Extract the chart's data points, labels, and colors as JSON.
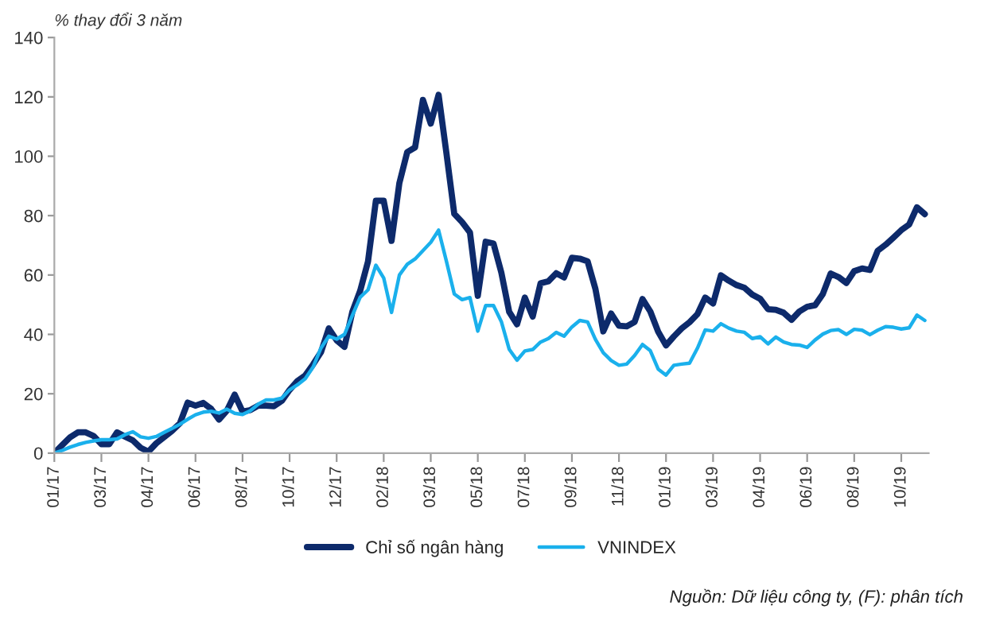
{
  "chart_data": {
    "type": "line",
    "ylabel": "% thay đổi 3 năm",
    "annotations": [
      "Nguồn: Dữ liệu công ty, (F): phân tích"
    ],
    "ylim": [
      0,
      140
    ],
    "yticks": [
      0,
      20,
      40,
      60,
      80,
      100,
      120,
      140
    ],
    "categories": [
      "01/17",
      null,
      null,
      null,
      null,
      null,
      "03/17",
      null,
      null,
      null,
      null,
      null,
      "04/17",
      null,
      null,
      null,
      null,
      null,
      "06/17",
      null,
      null,
      null,
      null,
      null,
      "08/17",
      null,
      null,
      null,
      null,
      null,
      "10/17",
      null,
      null,
      null,
      null,
      null,
      "12/17",
      null,
      null,
      null,
      null,
      null,
      "02/18",
      null,
      null,
      null,
      null,
      null,
      "03/18",
      null,
      null,
      null,
      null,
      null,
      "05/18",
      null,
      null,
      null,
      null,
      null,
      "07/18",
      null,
      null,
      null,
      null,
      null,
      "09/18",
      null,
      null,
      null,
      null,
      null,
      "11/18",
      null,
      null,
      null,
      null,
      null,
      "01/19",
      null,
      null,
      null,
      null,
      null,
      "03/19",
      null,
      null,
      null,
      null,
      null,
      "04/19",
      null,
      null,
      null,
      null,
      null,
      "06/19",
      null,
      null,
      null,
      null,
      null,
      "08/19",
      null,
      null,
      null,
      null,
      null,
      "10/19",
      null,
      null,
      null
    ],
    "grid": false,
    "legend": "bottom",
    "marker": "none",
    "line_style": "solid",
    "series": [
      {
        "name": "Chỉ số ngân hàng",
        "color": "#0d2a6b",
        "values": [
          0,
          2.7,
          5.3,
          7,
          7,
          5.8,
          3,
          3,
          7,
          5.6,
          4.3,
          1.8,
          0.5,
          3.3,
          5.4,
          7.5,
          10,
          17,
          16,
          16.9,
          14.9,
          11.3,
          14.3,
          19.7,
          14,
          14.5,
          16,
          16,
          15.8,
          17.6,
          21.3,
          24.3,
          26.2,
          29.9,
          34,
          42,
          38,
          35.8,
          47.6,
          54.7,
          64.6,
          85,
          85,
          71.5,
          91,
          101.4,
          103,
          119,
          111,
          120.7,
          101,
          80.6,
          77.8,
          74.3,
          53,
          71.2,
          70.6,
          60.8,
          47.6,
          43.4,
          52.4,
          46,
          57.2,
          57.9,
          60.6,
          59.2,
          65.8,
          65.5,
          64.6,
          55.3,
          41,
          47,
          42.9,
          42.7,
          44.2,
          51.9,
          47.7,
          40.9,
          36.3,
          39.3,
          42,
          44.1,
          46.8,
          52.4,
          50.4,
          59.9,
          58.1,
          56.6,
          55.7,
          53.4,
          52,
          48.5,
          48.3,
          47.3,
          44.9,
          47.7,
          49.3,
          49.8,
          53.6,
          60.5,
          59.3,
          57.3,
          61.3,
          62.2,
          61.7,
          68.2,
          70.2,
          72.6,
          75.1,
          77,
          82.8,
          80.5
        ]
      },
      {
        "name": "VNINDEX",
        "color": "#1ab0ec",
        "values": [
          0,
          0.9,
          2,
          2.9,
          3.6,
          4.1,
          4.5,
          4.5,
          4.8,
          6.2,
          7.2,
          5.5,
          5,
          5.6,
          7,
          8.3,
          9.7,
          11.4,
          12.9,
          13.8,
          14.1,
          13.5,
          14.8,
          13.4,
          13,
          14.3,
          16.5,
          17.9,
          17.9,
          18.5,
          21.3,
          23,
          25.1,
          29,
          35.4,
          39.4,
          38.4,
          40,
          46.4,
          52.5,
          55,
          63.3,
          59,
          47.4,
          60,
          63.6,
          65.4,
          68.2,
          71,
          75.1,
          64.6,
          53.6,
          51.7,
          52.4,
          41.1,
          49.7,
          49.7,
          44.3,
          35,
          31.3,
          34.4,
          34.9,
          37.4,
          38.6,
          40.7,
          39.4,
          42.5,
          44.7,
          44.2,
          38.3,
          33.8,
          31.2,
          29.6,
          30,
          32.9,
          36.6,
          34.5,
          28.3,
          26.3,
          29.6,
          30,
          30.3,
          35.3,
          41.5,
          41.1,
          43.6,
          42.1,
          41.1,
          40.7,
          38.6,
          39.2,
          36.8,
          39.1,
          37.4,
          36.6,
          36.4,
          35.6,
          38.1,
          40.1,
          41.3,
          41.6,
          40,
          41.7,
          41.4,
          39.9,
          41.4,
          42.6,
          42.4,
          41.8,
          42.2,
          46.5,
          44.7
        ]
      }
    ]
  }
}
